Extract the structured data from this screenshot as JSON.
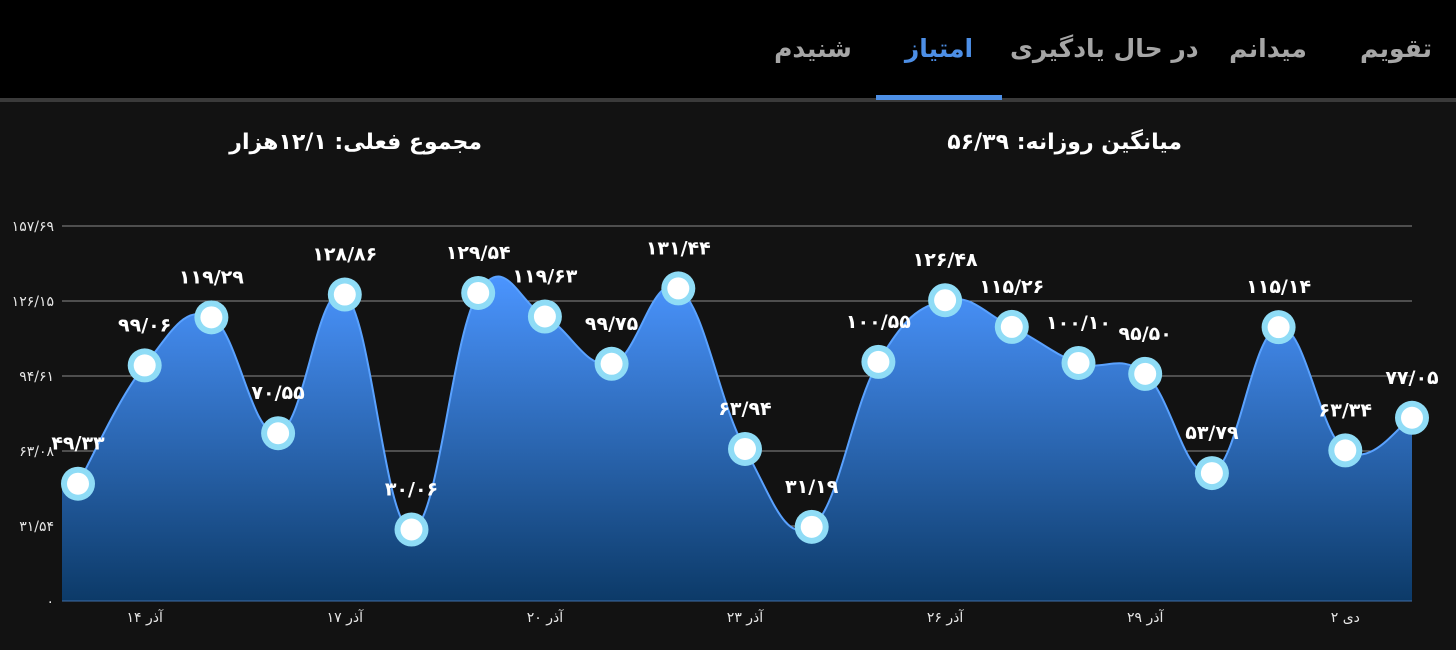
{
  "tabs": [
    {
      "label": "تقویم",
      "active": false
    },
    {
      "label": "میدانم",
      "active": false
    },
    {
      "label": "در حال یادگیری",
      "active": false
    },
    {
      "label": "امتیاز",
      "active": true
    },
    {
      "label": "شنیدم",
      "active": false
    }
  ],
  "stats": {
    "daily_average": "میانگین روزانه: ۵۶/۳۹",
    "current_total": "مجموع فعلی: ۱۲/۱هزار"
  },
  "colors": {
    "accent": "#4d8fe6",
    "area_top": "#4b95ff",
    "area_bottom": "#0c3a68",
    "marker_fill": "#ffffff",
    "marker_ring": "#8fdcf6",
    "background": "#121212",
    "tabbar": "#000000"
  },
  "chart_data": {
    "type": "area",
    "title": "",
    "xlabel": "",
    "ylabel": "",
    "ylim": [
      0,
      157.69
    ],
    "yticks": [
      0,
      31.54,
      63.08,
      94.61,
      126.15,
      157.69
    ],
    "ytick_labels": [
      "۰",
      "۳۱/۵۴",
      "۶۳/۰۸",
      "۹۴/۶۱",
      "۱۲۶/۱۵",
      "۱۵۷/۶۹"
    ],
    "x_tick_labels": [
      {
        "day_index": 1,
        "label": "۱۴ آذر"
      },
      {
        "day_index": 4,
        "label": "۱۷ آذر"
      },
      {
        "day_index": 7,
        "label": "۲۰ آذر"
      },
      {
        "day_index": 10,
        "label": "۲۳ آذر"
      },
      {
        "day_index": 13,
        "label": "۲۶ آذر"
      },
      {
        "day_index": 16,
        "label": "۲۹ آذر"
      },
      {
        "day_index": 19,
        "label": "۲ دی"
      }
    ],
    "grid": true,
    "smooth": true,
    "values": [
      49.33,
      99.06,
      119.29,
      70.55,
      128.86,
      30.06,
      129.54,
      119.63,
      99.75,
      131.44,
      63.94,
      31.19,
      100.55,
      126.48,
      115.26,
      100.1,
      95.5,
      53.79,
      115.14,
      63.34,
      77.05
    ],
    "value_labels": [
      "۴۹/۳۳",
      "۹۹/۰۶",
      "۱۱۹/۲۹",
      "۷۰/۵۵",
      "۱۲۸/۸۶",
      "۳۰/۰۶",
      "۱۲۹/۵۴",
      "۱۱۹/۶۳",
      "۹۹/۷۵",
      "۱۳۱/۴۴",
      "۶۳/۹۴",
      "۳۱/۱۹",
      "۱۰۰/۵۵",
      "۱۲۶/۴۸",
      "۱۱۵/۲۶",
      "۱۰۰/۱۰",
      "۹۵/۵۰",
      "۵۳/۷۹",
      "۱۱۵/۱۴",
      "۶۳/۳۴",
      "۷۷/۰۵"
    ]
  }
}
